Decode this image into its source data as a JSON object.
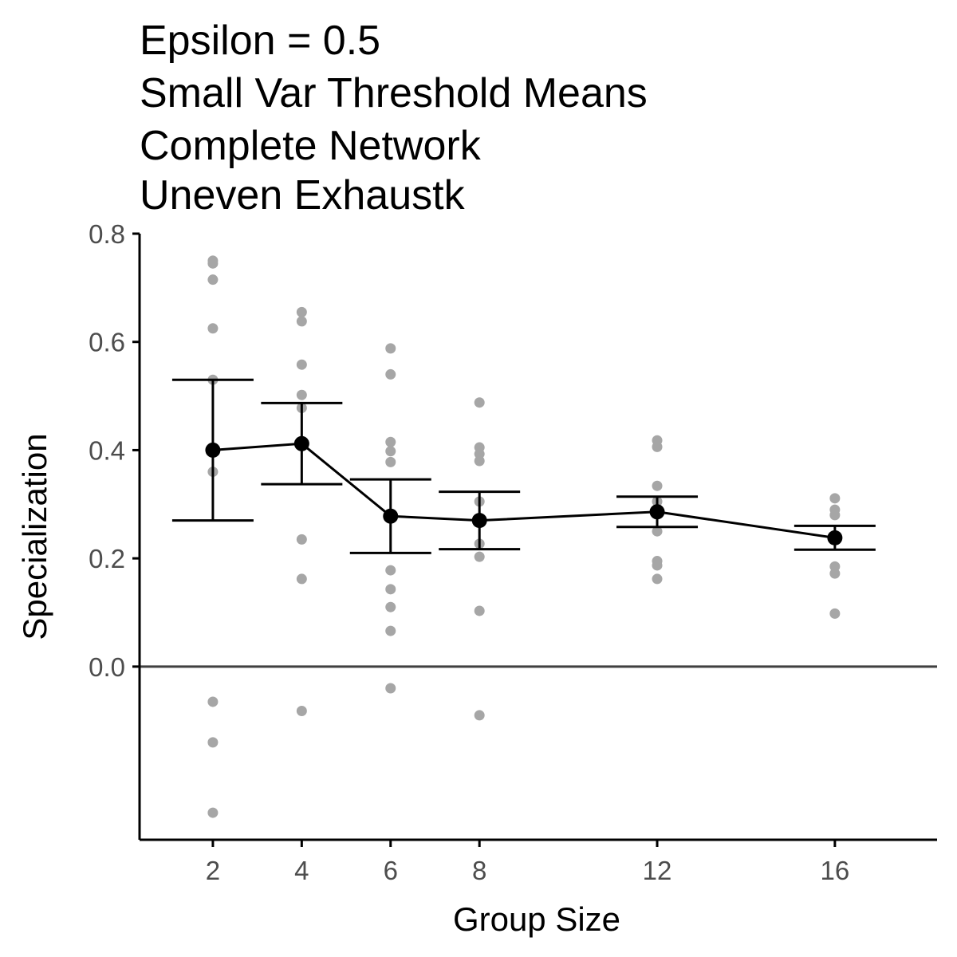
{
  "chart_data": {
    "type": "scatter",
    "title_lines": [
      "Epsilon = 0.5",
      "Small Var Threshold Means",
      "Complete Network",
      "Uneven Exhaustk"
    ],
    "xlabel": "Group Size",
    "ylabel": "Specialization",
    "x_ticks": [
      2,
      4,
      6,
      8,
      12,
      16
    ],
    "x_tick_labels": [
      "2",
      "4",
      "6",
      "8",
      "12",
      "16"
    ],
    "y_ticks": [
      0.0,
      0.2,
      0.4,
      0.6,
      0.8
    ],
    "y_tick_labels": [
      "0.0",
      "0.2",
      "0.4",
      "0.6",
      "0.8"
    ],
    "xlim": [
      0.35,
      18.3
    ],
    "ylim": [
      -0.32,
      0.8
    ],
    "grid": false,
    "reference_line_y": 0.0,
    "colors": {
      "points": "#a6a6a6",
      "summary": "#000000",
      "zero_line": "#404040",
      "axis": "#000000",
      "tick_text": "#4d4d4d"
    },
    "series": [
      {
        "kind": "raw_points",
        "points": [
          {
            "x": 2,
            "y": 0.75
          },
          {
            "x": 2,
            "y": 0.745
          },
          {
            "x": 2,
            "y": 0.715
          },
          {
            "x": 2,
            "y": 0.625
          },
          {
            "x": 2,
            "y": 0.53
          },
          {
            "x": 2,
            "y": 0.36
          },
          {
            "x": 2,
            "y": -0.065
          },
          {
            "x": 2,
            "y": -0.14
          },
          {
            "x": 2,
            "y": -0.27
          },
          {
            "x": 4,
            "y": 0.655
          },
          {
            "x": 4,
            "y": 0.638
          },
          {
            "x": 4,
            "y": 0.558
          },
          {
            "x": 4,
            "y": 0.502
          },
          {
            "x": 4,
            "y": 0.478
          },
          {
            "x": 4,
            "y": 0.235
          },
          {
            "x": 4,
            "y": 0.162
          },
          {
            "x": 4,
            "y": -0.082
          },
          {
            "x": 6,
            "y": 0.588
          },
          {
            "x": 6,
            "y": 0.54
          },
          {
            "x": 6,
            "y": 0.415
          },
          {
            "x": 6,
            "y": 0.398
          },
          {
            "x": 6,
            "y": 0.378
          },
          {
            "x": 6,
            "y": 0.178
          },
          {
            "x": 6,
            "y": 0.143
          },
          {
            "x": 6,
            "y": 0.11
          },
          {
            "x": 6,
            "y": 0.066
          },
          {
            "x": 6,
            "y": -0.04
          },
          {
            "x": 8,
            "y": 0.488
          },
          {
            "x": 8,
            "y": 0.405
          },
          {
            "x": 8,
            "y": 0.393
          },
          {
            "x": 8,
            "y": 0.38
          },
          {
            "x": 8,
            "y": 0.305
          },
          {
            "x": 8,
            "y": 0.227
          },
          {
            "x": 8,
            "y": 0.203
          },
          {
            "x": 8,
            "y": 0.103
          },
          {
            "x": 8,
            "y": -0.09
          },
          {
            "x": 12,
            "y": 0.418
          },
          {
            "x": 12,
            "y": 0.406
          },
          {
            "x": 12,
            "y": 0.334
          },
          {
            "x": 12,
            "y": 0.305
          },
          {
            "x": 12,
            "y": 0.25
          },
          {
            "x": 12,
            "y": 0.195
          },
          {
            "x": 12,
            "y": 0.187
          },
          {
            "x": 12,
            "y": 0.162
          },
          {
            "x": 16,
            "y": 0.311
          },
          {
            "x": 16,
            "y": 0.29
          },
          {
            "x": 16,
            "y": 0.28
          },
          {
            "x": 16,
            "y": 0.185
          },
          {
            "x": 16,
            "y": 0.172
          },
          {
            "x": 16,
            "y": 0.098
          }
        ]
      },
      {
        "kind": "mean_with_error",
        "points": [
          {
            "x": 2,
            "y": 0.4,
            "lower": 0.27,
            "upper": 0.53
          },
          {
            "x": 4,
            "y": 0.412,
            "lower": 0.337,
            "upper": 0.487
          },
          {
            "x": 6,
            "y": 0.278,
            "lower": 0.21,
            "upper": 0.346
          },
          {
            "x": 8,
            "y": 0.27,
            "lower": 0.217,
            "upper": 0.323
          },
          {
            "x": 12,
            "y": 0.286,
            "lower": 0.258,
            "upper": 0.314
          },
          {
            "x": 16,
            "y": 0.238,
            "lower": 0.216,
            "upper": 0.26
          }
        ]
      }
    ]
  }
}
